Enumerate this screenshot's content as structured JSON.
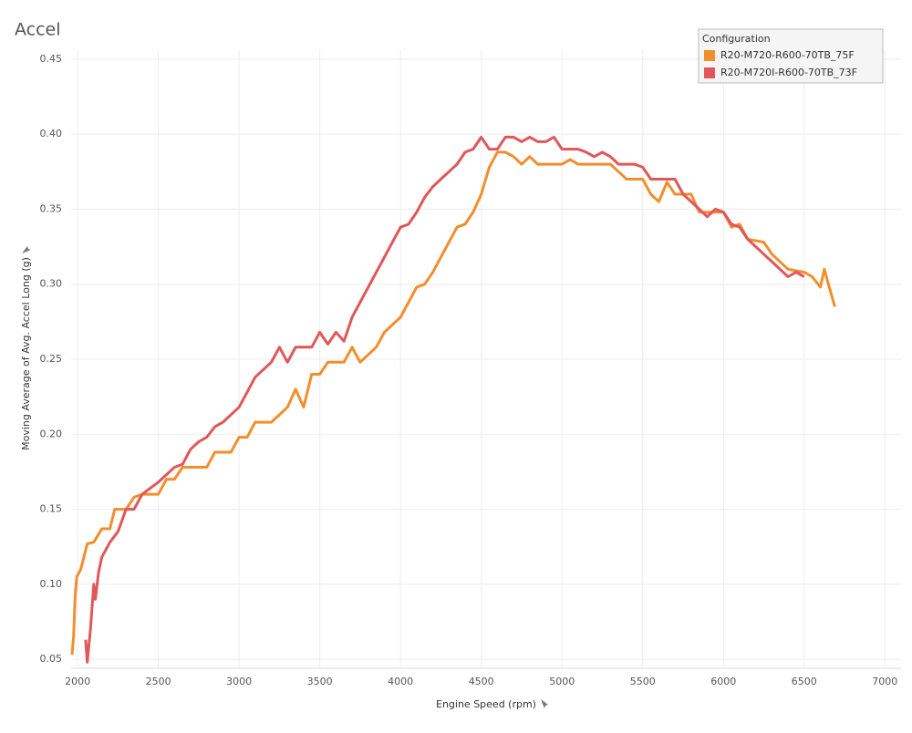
{
  "chart_data": {
    "type": "line",
    "title": "Accel",
    "x_label": "Engine Speed (rpm)",
    "y_label": "Moving Average of Avg. Accel Long (g)",
    "legend_title": "Configuration",
    "legend_position": "top-right",
    "grid": true,
    "xlim": [
      1960,
      7100
    ],
    "xticks": [
      2000,
      2500,
      3000,
      3500,
      4000,
      4500,
      5000,
      5500,
      6000,
      6500,
      7000
    ],
    "ylim": [
      0.044,
      0.456
    ],
    "yticks": [
      {
        "value": 0.05,
        "label": "0.05"
      },
      {
        "value": 0.1,
        "label": "0.10"
      },
      {
        "value": 0.15,
        "label": "0.15"
      },
      {
        "value": 0.2,
        "label": "0.20"
      },
      {
        "value": 0.25,
        "label": "0.25"
      },
      {
        "value": 0.3,
        "label": "0.30"
      },
      {
        "value": 0.35,
        "label": "0.35"
      },
      {
        "value": 0.4,
        "label": "0.40"
      },
      {
        "value": 0.45,
        "label": "0.45"
      }
    ],
    "series": [
      {
        "name": "R20-M720-R600-70TB_75F",
        "color": "#f28e2b",
        "x": [
          1965,
          1975,
          1985,
          1995,
          2020,
          2060,
          2100,
          2150,
          2200,
          2230,
          2300,
          2350,
          2400,
          2450,
          2500,
          2550,
          2600,
          2650,
          2700,
          2800,
          2850,
          2900,
          2950,
          3000,
          3050,
          3100,
          3200,
          3300,
          3350,
          3400,
          3450,
          3500,
          3550,
          3650,
          3700,
          3750,
          3850,
          3900,
          4000,
          4050,
          4100,
          4150,
          4200,
          4250,
          4300,
          4350,
          4400,
          4450,
          4500,
          4550,
          4600,
          4650,
          4700,
          4750,
          4800,
          4850,
          4900,
          5000,
          5050,
          5100,
          5200,
          5300,
          5350,
          5400,
          5500,
          5550,
          5600,
          5650,
          5700,
          5800,
          5850,
          5900,
          6000,
          6050,
          6100,
          6150,
          6250,
          6300,
          6350,
          6400,
          6500,
          6550,
          6600,
          6625,
          6650,
          6690
        ],
        "values": [
          0.053,
          0.065,
          0.092,
          0.105,
          0.11,
          0.127,
          0.128,
          0.137,
          0.137,
          0.15,
          0.15,
          0.158,
          0.16,
          0.16,
          0.16,
          0.17,
          0.17,
          0.178,
          0.178,
          0.178,
          0.188,
          0.188,
          0.188,
          0.198,
          0.198,
          0.208,
          0.208,
          0.218,
          0.23,
          0.218,
          0.24,
          0.24,
          0.248,
          0.248,
          0.258,
          0.248,
          0.258,
          0.268,
          0.278,
          0.288,
          0.298,
          0.3,
          0.308,
          0.318,
          0.328,
          0.338,
          0.34,
          0.348,
          0.36,
          0.378,
          0.388,
          0.388,
          0.385,
          0.38,
          0.385,
          0.38,
          0.38,
          0.38,
          0.383,
          0.38,
          0.38,
          0.38,
          0.375,
          0.37,
          0.37,
          0.36,
          0.355,
          0.368,
          0.36,
          0.36,
          0.348,
          0.348,
          0.348,
          0.338,
          0.34,
          0.33,
          0.328,
          0.32,
          0.315,
          0.31,
          0.308,
          0.305,
          0.298,
          0.31,
          0.3,
          0.285
        ]
      },
      {
        "name": "R20-M720I-R600-70TB_73F",
        "color": "#e15759",
        "x": [
          2050,
          2060,
          2080,
          2100,
          2110,
          2130,
          2150,
          2200,
          2250,
          2300,
          2350,
          2400,
          2500,
          2600,
          2650,
          2700,
          2750,
          2800,
          2850,
          2900,
          3000,
          3050,
          3100,
          3200,
          3250,
          3300,
          3350,
          3450,
          3500,
          3550,
          3600,
          3650,
          3700,
          3750,
          3800,
          3850,
          3900,
          3950,
          4000,
          4050,
          4100,
          4150,
          4200,
          4250,
          4300,
          4350,
          4400,
          4450,
          4500,
          4550,
          4600,
          4650,
          4700,
          4750,
          4800,
          4850,
          4900,
          4950,
          5000,
          5050,
          5100,
          5150,
          5200,
          5250,
          5300,
          5350,
          5450,
          5500,
          5550,
          5700,
          5750,
          5800,
          5850,
          5900,
          5950,
          6000,
          6050,
          6100,
          6150,
          6200,
          6250,
          6300,
          6350,
          6400,
          6450,
          6500
        ],
        "values": [
          0.063,
          0.048,
          0.07,
          0.1,
          0.09,
          0.108,
          0.118,
          0.128,
          0.135,
          0.15,
          0.15,
          0.16,
          0.168,
          0.178,
          0.18,
          0.19,
          0.195,
          0.198,
          0.205,
          0.208,
          0.218,
          0.228,
          0.238,
          0.248,
          0.258,
          0.248,
          0.258,
          0.258,
          0.268,
          0.26,
          0.268,
          0.262,
          0.278,
          0.288,
          0.298,
          0.308,
          0.318,
          0.328,
          0.338,
          0.34,
          0.348,
          0.358,
          0.365,
          0.37,
          0.375,
          0.38,
          0.388,
          0.39,
          0.398,
          0.39,
          0.39,
          0.398,
          0.398,
          0.395,
          0.398,
          0.395,
          0.395,
          0.398,
          0.39,
          0.39,
          0.39,
          0.388,
          0.385,
          0.388,
          0.385,
          0.38,
          0.38,
          0.378,
          0.37,
          0.37,
          0.36,
          0.355,
          0.35,
          0.345,
          0.35,
          0.348,
          0.34,
          0.338,
          0.33,
          0.325,
          0.32,
          0.315,
          0.31,
          0.305,
          0.308,
          0.305
        ]
      }
    ]
  }
}
